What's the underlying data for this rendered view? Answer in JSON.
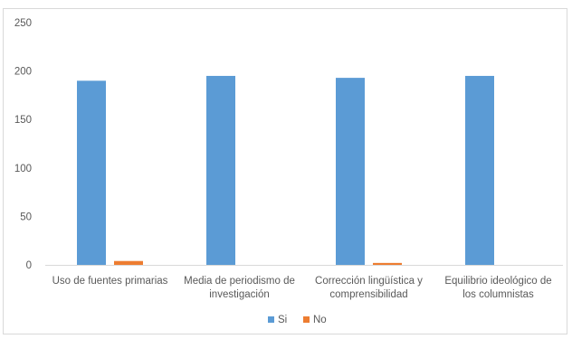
{
  "chart_data": {
    "type": "bar",
    "categories": [
      [
        "Uso de fuentes primarias"
      ],
      [
        "Media de periodismo de",
        "investigación"
      ],
      [
        "Corrección lingüística y",
        "comprensibilidad"
      ],
      [
        "Equilibrio ideológico de",
        "los columnistas"
      ]
    ],
    "series": [
      {
        "name": "Si",
        "color": "#5b9bd5",
        "values": [
          190,
          195,
          193,
          195
        ]
      },
      {
        "name": "No",
        "color": "#ed7d31",
        "values": [
          4,
          0,
          2,
          0
        ]
      }
    ],
    "ylim": [
      0,
      250
    ],
    "yticks": [
      0,
      50,
      100,
      150,
      200,
      250
    ],
    "title": "",
    "xlabel": "",
    "ylabel": "",
    "legend": "bottom",
    "grid": false
  }
}
